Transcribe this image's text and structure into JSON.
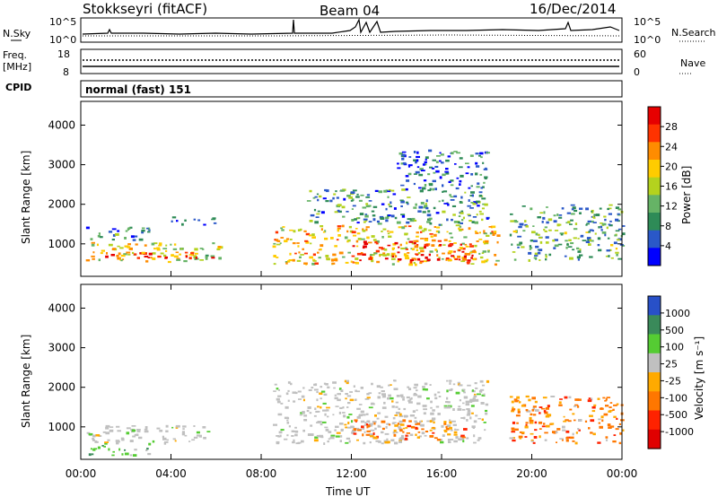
{
  "header": {
    "station": "Stokkseyri (fitACF)",
    "beam": "Beam 04",
    "date": "16/Dec/2014"
  },
  "strip_panels": {
    "nsky": {
      "label": "N.Sky",
      "left_ticks": [
        "10^5",
        "10^0"
      ],
      "right_ticks": [
        "10^5",
        "10^0"
      ],
      "right_label": "N.Search"
    },
    "freq": {
      "label_line1": "Freq.",
      "label_line2": "[MHz]",
      "left_ticks": [
        "18",
        "8"
      ],
      "right_ticks": [
        "60",
        "0"
      ],
      "right_label": "Nave"
    },
    "cpid": {
      "label": "CPID",
      "text": "normal (fast) 151"
    }
  },
  "axes": {
    "ylabel": "Slant Range [km]",
    "y_ticks": [
      {
        "label": "4000",
        "value": 4000
      },
      {
        "label": "3000",
        "value": 3000
      },
      {
        "label": "2000",
        "value": 2000
      },
      {
        "label": "1000",
        "value": 1000
      }
    ],
    "x_ticks": [
      "00:00",
      "04:00",
      "08:00",
      "12:00",
      "16:00",
      "20:00",
      "00:00"
    ],
    "xlabel": "Time UT"
  },
  "chart_data": [
    {
      "type": "heatmap",
      "quantity": "Power",
      "colorbar_label": "Power [dB]",
      "colorbar_ticks": [
        "28",
        "24",
        "20",
        "16",
        "12",
        "8",
        "4"
      ],
      "x": {
        "unit": "hour UT",
        "range": [
          0,
          24
        ]
      },
      "y": {
        "unit": "km",
        "range": [
          180,
          4600
        ]
      },
      "color_scale": [
        "#0000ff",
        "#2a58c8",
        "#2e8b57",
        "#66b366",
        "#b4d21e",
        "#ffcc00",
        "#ff8c00",
        "#ff3300",
        "#e60000"
      ],
      "regions": [
        {
          "x": [
            0.2,
            6.2
          ],
          "y": [
            560,
            1050
          ],
          "level": 0.55
        },
        {
          "x": [
            0.3,
            6.0
          ],
          "y": [
            650,
            820
          ],
          "level": 0.85
        },
        {
          "x": [
            0.2,
            3.0
          ],
          "y": [
            1100,
            1450
          ],
          "level": 0.25
        },
        {
          "x": [
            4.0,
            6.0
          ],
          "y": [
            1500,
            1700
          ],
          "level": 0.15
        },
        {
          "x": [
            8.5,
            18.5
          ],
          "y": [
            500,
            1500
          ],
          "level": 0.6
        },
        {
          "x": [
            12.0,
            17.5
          ],
          "y": [
            600,
            1100
          ],
          "level": 0.85
        },
        {
          "x": [
            10.0,
            18.0
          ],
          "y": [
            1500,
            2400
          ],
          "level": 0.3
        },
        {
          "x": [
            14.0,
            18.0
          ],
          "y": [
            2400,
            3400
          ],
          "level": 0.2
        },
        {
          "x": [
            19.0,
            24.0
          ],
          "y": [
            600,
            2000
          ],
          "level": 0.35
        }
      ]
    },
    {
      "type": "heatmap",
      "quantity": "Velocity",
      "colorbar_label": "Velocity [m s⁻¹]",
      "colorbar_ticks": [
        "1000",
        "500",
        "100",
        "25",
        "-25",
        "-100",
        "-500",
        "-1000"
      ],
      "x": {
        "unit": "hour UT",
        "range": [
          0,
          24
        ]
      },
      "y": {
        "unit": "km",
        "range": [
          180,
          4600
        ]
      },
      "color_scale": [
        "#2850c8",
        "#3a8a5a",
        "#55cc33",
        "#c0c0c0",
        "#ffaa00",
        "#ff7700",
        "#ff2200",
        "#e00000"
      ],
      "regions": [
        {
          "x": [
            0.2,
            6.0
          ],
          "y": [
            600,
            1050
          ],
          "level": "ground"
        },
        {
          "x": [
            0.3,
            3.0
          ],
          "y": [
            300,
            600
          ],
          "level": "positive"
        },
        {
          "x": [
            8.5,
            18.0
          ],
          "y": [
            600,
            2200
          ],
          "level": "ground"
        },
        {
          "x": [
            12.0,
            17.0
          ],
          "y": [
            700,
            1200
          ],
          "level": "negative"
        },
        {
          "x": [
            19.0,
            24.0
          ],
          "y": [
            600,
            1800
          ],
          "level": "negative"
        }
      ]
    }
  ]
}
